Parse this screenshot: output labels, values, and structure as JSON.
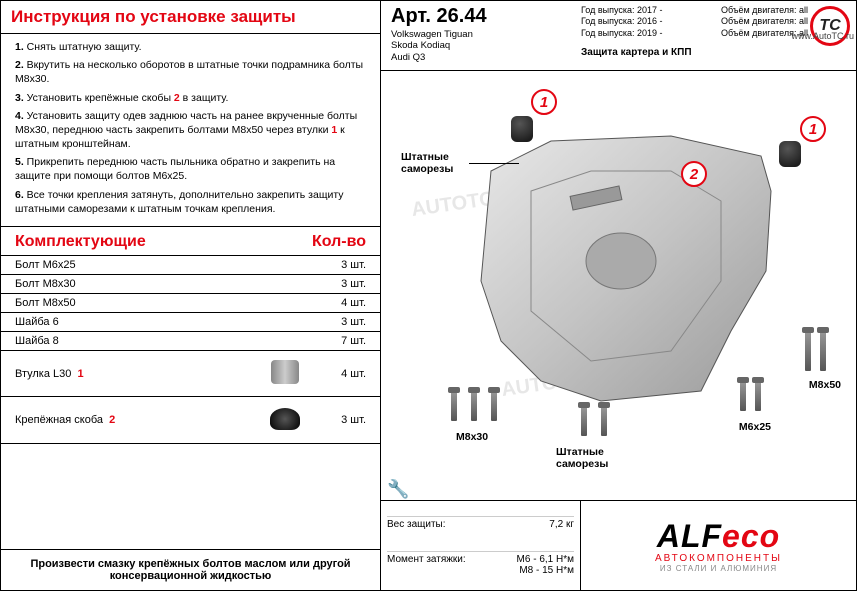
{
  "title": "Инструкция по установке защиты",
  "instructions": [
    {
      "n": "1.",
      "text": "Снять штатную защиту."
    },
    {
      "n": "2.",
      "text": "Вкрутить на несколько оборотов в штатные точки подрамника болты М8х30."
    },
    {
      "n": "3.",
      "html": "Установить крепёжные скобы <span class='red'>2</span> в защиту."
    },
    {
      "n": "4.",
      "html": "Установить защиту одев заднюю часть на ранее вкрученные болты М8х30, переднюю часть закрепить болтами М8х50 через втулки <span class='red'>1</span> к штатным кронштейнам."
    },
    {
      "n": "5.",
      "text": "Прикрепить переднюю часть пыльника обратно и закрепить на защите при помощи болтов М6х25."
    },
    {
      "n": "6.",
      "text": "Все точки крепления затянуть, дополнительно закрепить защиту штатными саморезами к штатным точкам крепления."
    }
  ],
  "comp_header_left": "Комплектующие",
  "comp_header_right": "Кол-во",
  "components": [
    {
      "name": "Болт М6х25",
      "qty": "3 шт."
    },
    {
      "name": "Болт М8х30",
      "qty": "3 шт."
    },
    {
      "name": "Болт М8х50",
      "qty": "4 шт."
    },
    {
      "name": "Шайба 6",
      "qty": "3 шт."
    },
    {
      "name": "Шайба 8",
      "qty": "7 шт."
    }
  ],
  "bushing": {
    "name": "Втулка L30",
    "mark": "1",
    "qty": "4 шт."
  },
  "bracket": {
    "name": "Крепёжная скоба",
    "mark": "2",
    "qty": "3 шт."
  },
  "footer_note": "Произвести смазку крепёжных болтов маслом или другой консервационной жидкостью",
  "art": "Арт. 26.44",
  "vehicles": [
    "Volkswagen Tiguan",
    "Skoda Kodiaq",
    "Audi Q3"
  ],
  "years": [
    "Год выпуска: 2017 -",
    "Год выпуска: 2016 -",
    "Год выпуска: 2019 -"
  ],
  "engines": [
    "Объём двигателя: all",
    "Объём двигателя: all",
    "Объём двигателя: all"
  ],
  "protection_title": "Защита картера и КПП",
  "annotations": {
    "screws": "Штатные саморезы",
    "m8x30": "M8x30",
    "m8x50": "M8x50",
    "m6x25": "M6x25"
  },
  "specs": {
    "weight_label": "Вес защиты:",
    "weight_value": "7,2 кг",
    "torque_label": "Момент затяжки:",
    "torque1": "М6 - 6,1 Н*м",
    "torque2": "М8 - 15 Н*м"
  },
  "logo": {
    "main1": "ALF",
    "main2": "eco",
    "sub1": "АВТОКОМПОНЕНТЫ",
    "sub2": "ИЗ СТАЛИ И АЛЮМИНИЯ"
  },
  "watermark": {
    "circle": "TC",
    "url": "www.AutoTC.ru",
    "text": "AUTOTC.RU"
  }
}
